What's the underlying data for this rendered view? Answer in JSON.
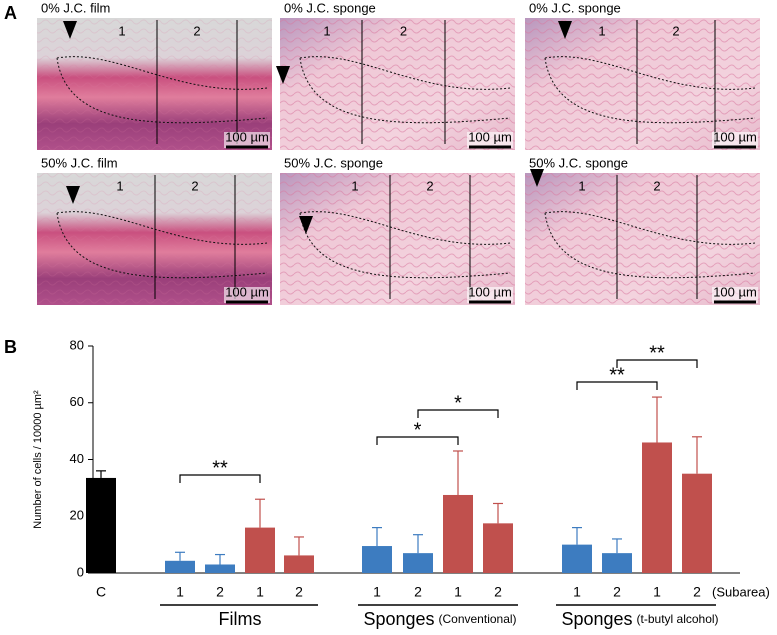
{
  "panel_a": {
    "label": "A",
    "images": [
      {
        "label": "0% J.C. film",
        "subareas": [
          "1",
          "2"
        ],
        "scale": "100 µm"
      },
      {
        "label": "0% J.C. sponge",
        "subareas": [
          "1",
          "2"
        ],
        "scale": "100 µm"
      },
      {
        "label": "0% J.C. sponge",
        "subareas": [
          "1",
          "2"
        ],
        "scale": "100 µm"
      },
      {
        "label": "50% J.C. film",
        "subareas": [
          "1",
          "2"
        ],
        "scale": "100 µm"
      },
      {
        "label": "50% J.C. sponge",
        "subareas": [
          "1",
          "2"
        ],
        "scale": "100 µm"
      },
      {
        "label": "50% J.C. sponge",
        "subareas": [
          "1",
          "2"
        ],
        "scale": "100 µm"
      }
    ]
  },
  "chart_data": {
    "type": "bar",
    "panel_label": "B",
    "y_label": "Number of cells / 10000 µm²",
    "categories": [
      "C",
      "1",
      "2",
      "1",
      "2",
      "1",
      "2",
      "1",
      "2",
      "1",
      "2",
      "1",
      "2"
    ],
    "values": [
      33.5,
      4.3,
      3,
      16,
      6.2,
      9.5,
      7,
      27.5,
      17.5,
      10,
      7,
      46,
      35
    ],
    "errors": [
      2.5,
      3,
      3.5,
      10,
      6.5,
      6.5,
      6.5,
      15.5,
      7,
      6,
      5,
      16,
      13
    ],
    "colors": [
      "#000000",
      "#3d7cc0",
      "#3d7cc0",
      "#c0504d",
      "#c0504d",
      "#3d7cc0",
      "#3d7cc0",
      "#c0504d",
      "#c0504d",
      "#3d7cc0",
      "#3d7cc0",
      "#c0504d",
      "#c0504d"
    ],
    "subarea_label": "(Subarea)",
    "groups": [
      {
        "name": "Films"
      },
      {
        "name": "Sponges",
        "note": "(Conventional)"
      },
      {
        "name": "Sponges",
        "note": "(t-butyl alcohol)"
      }
    ],
    "significance": [
      "**",
      "*",
      "*",
      "**",
      "**"
    ],
    "ylim": [
      0,
      80
    ],
    "yticks": [
      0,
      20,
      40,
      60,
      80
    ]
  }
}
